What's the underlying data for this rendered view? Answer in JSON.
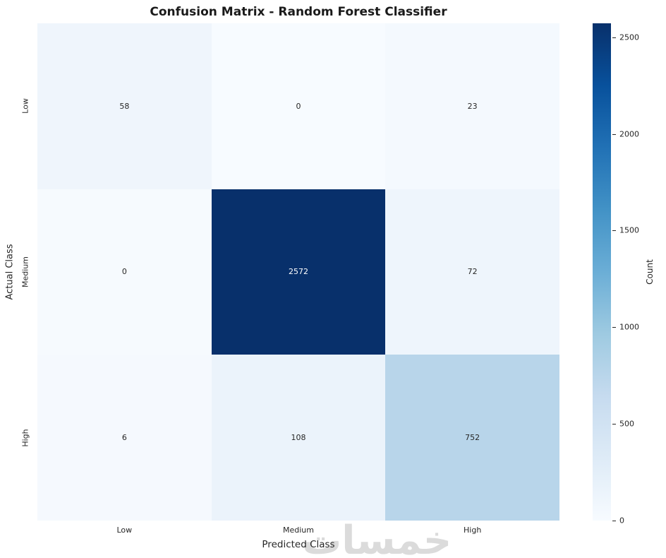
{
  "figure": {
    "title": "Confusion Matrix - Random Forest Classifier"
  },
  "chart_data": {
    "type": "heatmap",
    "title": "Confusion Matrix - Random Forest Classifier",
    "xlabel": "Predicted Class",
    "ylabel": "Actual Class",
    "x_categories": [
      "Low",
      "Medium",
      "High"
    ],
    "y_categories": [
      "Low",
      "Medium",
      "High"
    ],
    "rows": [
      [
        58,
        0,
        23
      ],
      [
        0,
        2572,
        72
      ],
      [
        6,
        108,
        752
      ]
    ],
    "value_range": [
      0,
      2572
    ],
    "colormap": "Blues",
    "grid": false,
    "legend_position": "none",
    "cell_colors": [
      [
        "#eff5fc",
        "#f7fbff",
        "#f4f9fe"
      ],
      [
        "#f6fafe",
        "#08306b",
        "#eef5fc"
      ],
      [
        "#f5f9fe",
        "#ebf3fb",
        "#b8d5ea"
      ]
    ],
    "cell_text_colors": [
      [
        "#262626",
        "#262626",
        "#262626"
      ],
      [
        "#262626",
        "#ffffff",
        "#262626"
      ],
      [
        "#262626",
        "#262626",
        "#262626"
      ]
    ],
    "colorbar": {
      "label": "Count",
      "tick_labels": [
        "0",
        "500",
        "1000",
        "1500",
        "2000",
        "2500"
      ],
      "tick_values": [
        0,
        500,
        1000,
        1500,
        2000,
        2500
      ],
      "min": 0,
      "max": 2572,
      "gradient_bottom_to_top": [
        "#f7fbff",
        "#deebf7",
        "#c6dbef",
        "#9ecae1",
        "#6baed6",
        "#4292c6",
        "#2171b5",
        "#08519c",
        "#08306b"
      ]
    }
  },
  "watermark": {
    "text": "خمسات",
    "color": "#dbdbdb"
  },
  "colors": {
    "background": "#ffffff",
    "title_text": "#1a1a1a",
    "tick_text": "#262626",
    "max_cell": "#08306b",
    "min_cell": "#f7fbff"
  }
}
